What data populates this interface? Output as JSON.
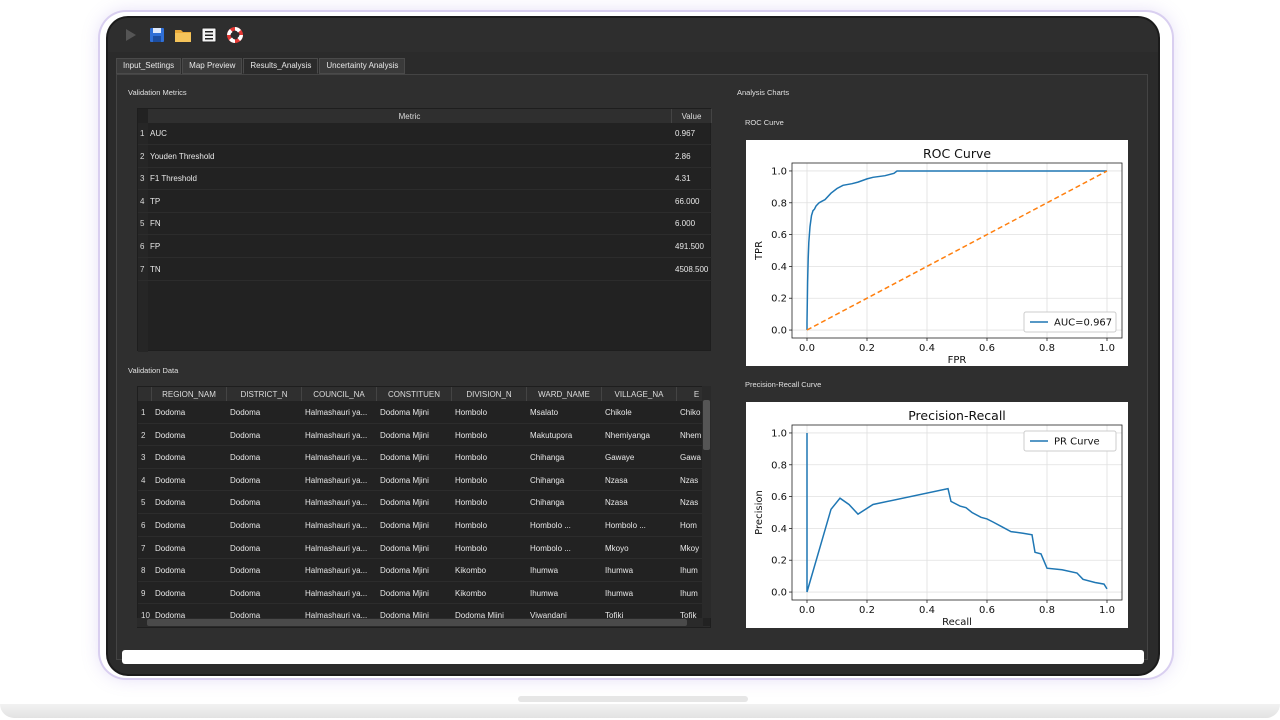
{
  "tabs": [
    {
      "label": "Input_Settings"
    },
    {
      "label": "Map Preview"
    },
    {
      "label": "Results_Analysis"
    },
    {
      "label": "Uncertainty Analysis"
    }
  ],
  "toolbar": {
    "icons": [
      "run-icon",
      "save-icon",
      "folder-icon",
      "list-icon",
      "help-icon"
    ]
  },
  "validation_metrics": {
    "title": "Validation Metrics",
    "headers": [
      "Metric",
      "Value"
    ],
    "rows": [
      {
        "num": "1",
        "metric": "AUC",
        "value": "0.967"
      },
      {
        "num": "2",
        "metric": "Youden Threshold",
        "value": "2.86"
      },
      {
        "num": "3",
        "metric": "F1 Threshold",
        "value": "4.31"
      },
      {
        "num": "4",
        "metric": "TP",
        "value": "66.000"
      },
      {
        "num": "5",
        "metric": "FN",
        "value": "6.000"
      },
      {
        "num": "6",
        "metric": "FP",
        "value": "491.500"
      },
      {
        "num": "7",
        "metric": "TN",
        "value": "4508.500"
      }
    ]
  },
  "validation_data": {
    "title": "Validation Data",
    "headers": [
      "REGION_NAM",
      "DISTRICT_N",
      "COUNCIL_NA",
      "CONSTITUEN",
      "DIVISION_N",
      "WARD_NAME",
      "VILLAGE_NA",
      "E"
    ],
    "rows": [
      {
        "num": "1",
        "cells": [
          "Dodoma",
          "Dodoma",
          "Halmashauri ya...",
          "Dodoma Mjini",
          "Hombolo",
          "Msalato",
          "Chikole",
          "Chiko"
        ]
      },
      {
        "num": "2",
        "cells": [
          "Dodoma",
          "Dodoma",
          "Halmashauri ya...",
          "Dodoma Mjini",
          "Hombolo",
          "Makutupora",
          "Nhemiyanga",
          "Nhem"
        ]
      },
      {
        "num": "3",
        "cells": [
          "Dodoma",
          "Dodoma",
          "Halmashauri ya...",
          "Dodoma Mjini",
          "Hombolo",
          "Chihanga",
          "Gawaye",
          "Gawa"
        ]
      },
      {
        "num": "4",
        "cells": [
          "Dodoma",
          "Dodoma",
          "Halmashauri ya...",
          "Dodoma Mjini",
          "Hombolo",
          "Chihanga",
          "Nzasa",
          "Nzas"
        ]
      },
      {
        "num": "5",
        "cells": [
          "Dodoma",
          "Dodoma",
          "Halmashauri ya...",
          "Dodoma Mjini",
          "Hombolo",
          "Chihanga",
          "Nzasa",
          "Nzas"
        ]
      },
      {
        "num": "6",
        "cells": [
          "Dodoma",
          "Dodoma",
          "Halmashauri ya...",
          "Dodoma Mjini",
          "Hombolo",
          "Hombolo ...",
          "Hombolo ...",
          "Hom"
        ]
      },
      {
        "num": "7",
        "cells": [
          "Dodoma",
          "Dodoma",
          "Halmashauri ya...",
          "Dodoma Mjini",
          "Hombolo",
          "Hombolo ...",
          "Mkoyo",
          "Mkoy"
        ]
      },
      {
        "num": "8",
        "cells": [
          "Dodoma",
          "Dodoma",
          "Halmashauri ya...",
          "Dodoma Mjini",
          "Kikombo",
          "Ihumwa",
          "Ihumwa",
          "Ihum"
        ]
      },
      {
        "num": "9",
        "cells": [
          "Dodoma",
          "Dodoma",
          "Halmashauri ya...",
          "Dodoma Mjini",
          "Kikombo",
          "Ihumwa",
          "Ihumwa",
          "Ihum"
        ]
      },
      {
        "num": "10",
        "cells": [
          "Dodoma",
          "Dodoma",
          "Halmashauri ya...",
          "Dodoma Mjini",
          "Dodoma Mjini",
          "Viwandani",
          "Tofiki",
          "Tofik"
        ]
      }
    ]
  },
  "analysis_charts": {
    "title": "Analysis Charts",
    "roc_label": "ROC Curve",
    "pr_label": "Precision-Recall Curve"
  },
  "chart_data": [
    {
      "type": "line",
      "title": "ROC Curve",
      "xlabel": "FPR",
      "ylabel": "TPR",
      "xlim": [
        0,
        1
      ],
      "ylim": [
        0,
        1
      ],
      "xticks": [
        "0.0",
        "0.2",
        "0.4",
        "0.6",
        "0.8",
        "1.0"
      ],
      "yticks": [
        "0.0",
        "0.2",
        "0.4",
        "0.6",
        "0.8",
        "1.0"
      ],
      "grid": true,
      "legend": "lower-right",
      "series": [
        {
          "name": "AUC=0.967",
          "color": "#1f77b4",
          "x": [
            0,
            0,
            0.002,
            0.004,
            0.006,
            0.01,
            0.015,
            0.02,
            0.025,
            0.03,
            0.04,
            0.05,
            0.06,
            0.08,
            0.1,
            0.12,
            0.15,
            0.17,
            0.2,
            0.22,
            0.26,
            0.29,
            0.3,
            1.0
          ],
          "y": [
            0,
            0.05,
            0.3,
            0.45,
            0.55,
            0.65,
            0.72,
            0.75,
            0.76,
            0.78,
            0.8,
            0.81,
            0.82,
            0.86,
            0.89,
            0.91,
            0.92,
            0.93,
            0.95,
            0.96,
            0.97,
            0.985,
            1.0,
            1.0
          ]
        },
        {
          "name": "",
          "color": "#ff7f0e",
          "dashed": true,
          "x": [
            0,
            1
          ],
          "y": [
            0,
            1
          ]
        }
      ]
    },
    {
      "type": "line",
      "title": "Precision-Recall",
      "xlabel": "Recall",
      "ylabel": "Precision",
      "xlim": [
        0,
        1
      ],
      "ylim": [
        0,
        1
      ],
      "xticks": [
        "0.0",
        "0.2",
        "0.4",
        "0.6",
        "0.8",
        "1.0"
      ],
      "yticks": [
        "0.0",
        "0.2",
        "0.4",
        "0.6",
        "0.8",
        "1.0"
      ],
      "grid": true,
      "legend": "top-right",
      "series": [
        {
          "name": "PR Curve",
          "color": "#1f77b4",
          "x": [
            0,
            0,
            0,
            0.08,
            0.11,
            0.14,
            0.17,
            0.22,
            0.47,
            0.48,
            0.51,
            0.53,
            0.55,
            0.58,
            0.6,
            0.62,
            0.65,
            0.68,
            0.72,
            0.75,
            0.76,
            0.78,
            0.8,
            0.85,
            0.9,
            0.92,
            0.96,
            0.99,
            1.0
          ],
          "y": [
            1.0,
            0.0,
            0.0,
            0.52,
            0.59,
            0.55,
            0.49,
            0.55,
            0.65,
            0.57,
            0.54,
            0.53,
            0.5,
            0.47,
            0.46,
            0.44,
            0.41,
            0.38,
            0.37,
            0.36,
            0.25,
            0.24,
            0.15,
            0.14,
            0.12,
            0.08,
            0.06,
            0.05,
            0.02
          ]
        }
      ]
    }
  ]
}
